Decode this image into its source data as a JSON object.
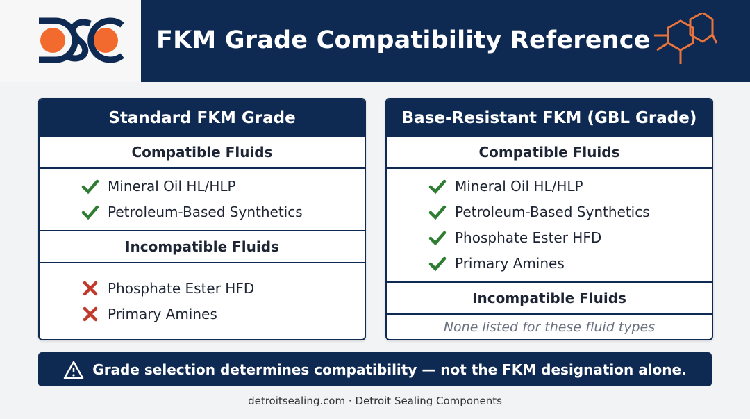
{
  "header": {
    "title": "FKM Grade Compatibility Reference"
  },
  "panels": [
    {
      "title": "Standard FKM Grade",
      "sections": [
        {
          "heading": "Compatible Fluids",
          "status": "compatible",
          "items": [
            "Mineral Oil HL/HLP",
            "Petroleum-Based Synthetics"
          ]
        },
        {
          "heading": "Incompatible Fluids",
          "status": "incompatible",
          "items": [
            "Phosphate Ester HFD",
            "Primary Amines"
          ]
        }
      ]
    },
    {
      "title": "Base-Resistant FKM (GBL Grade)",
      "sections": [
        {
          "heading": "Compatible Fluids",
          "status": "compatible",
          "items": [
            "Mineral Oil HL/HLP",
            "Petroleum-Based Synthetics",
            "Phosphate Ester HFD",
            "Primary Amines"
          ]
        },
        {
          "heading": "Incompatible Fluids",
          "note": "None listed for these fluid types"
        }
      ]
    }
  ],
  "banner": {
    "text": "Grade selection determines compatibility — not the FKM designation alone."
  },
  "footer": {
    "text": "detroitsealing.com · Detroit Sealing Components"
  }
}
